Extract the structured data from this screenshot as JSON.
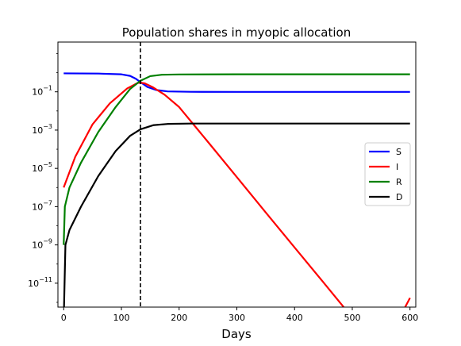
{
  "chart_data": {
    "type": "line",
    "title": "Population shares in myopic allocation",
    "xlabel": "Days",
    "ylabel": "",
    "xlim": [
      -10,
      610
    ],
    "ylim_log10": [
      -12.25,
      1.6
    ],
    "y_scale": "log",
    "x_ticks": [
      0,
      100,
      200,
      300,
      400,
      500,
      600
    ],
    "x_tick_labels": [
      "0",
      "100",
      "200",
      "300",
      "400",
      "500",
      "600"
    ],
    "y_ticks_exp": [
      -1,
      -3,
      -5,
      -7,
      -9,
      -11
    ],
    "y_tick_base": "10",
    "vline": {
      "x": 133,
      "style": "dashed",
      "color": "#000000"
    },
    "legend": {
      "position": "center-right"
    },
    "series": [
      {
        "name": "S",
        "color": "#0000ff",
        "points": [
          [
            0,
            0.92
          ],
          [
            60,
            0.9
          ],
          [
            100,
            0.82
          ],
          [
            115,
            0.68
          ],
          [
            125,
            0.48
          ],
          [
            133,
            0.32
          ],
          [
            145,
            0.18
          ],
          [
            160,
            0.125
          ],
          [
            180,
            0.105
          ],
          [
            220,
            0.1
          ],
          [
            300,
            0.099
          ],
          [
            600,
            0.099
          ]
        ]
      },
      {
        "name": "I",
        "color": "#ff0000",
        "points": [
          [
            0,
            1e-06
          ],
          [
            20,
            4e-05
          ],
          [
            50,
            0.002
          ],
          [
            80,
            0.025
          ],
          [
            110,
            0.15
          ],
          [
            128,
            0.29
          ],
          [
            133,
            0.3
          ],
          [
            140,
            0.28
          ],
          [
            155,
            0.17
          ],
          [
            175,
            0.07
          ],
          [
            200,
            0.016
          ],
          [
            250,
            0.00024
          ],
          [
            300,
            3.5e-06
          ],
          [
            350,
            5e-08
          ],
          [
            400,
            7.4e-10
          ],
          [
            450,
            1.1e-11
          ],
          [
            500,
            1.6e-13
          ],
          [
            550,
            2.4e-15
          ],
          [
            600,
            1.7e-12
          ]
        ]
      },
      {
        "name": "R",
        "color": "#008000",
        "points": [
          [
            0,
            1e-09
          ],
          [
            2,
            1e-07
          ],
          [
            10,
            1e-06
          ],
          [
            30,
            2e-05
          ],
          [
            60,
            0.0008
          ],
          [
            90,
            0.016
          ],
          [
            115,
            0.14
          ],
          [
            133,
            0.38
          ],
          [
            150,
            0.66
          ],
          [
            170,
            0.78
          ],
          [
            200,
            0.81
          ],
          [
            300,
            0.82
          ],
          [
            600,
            0.82
          ]
        ]
      },
      {
        "name": "D",
        "color": "#000000",
        "points": [
          [
            0,
            1e-13
          ],
          [
            3,
            1e-09
          ],
          [
            10,
            6e-09
          ],
          [
            30,
            1e-07
          ],
          [
            60,
            4e-06
          ],
          [
            90,
            8e-05
          ],
          [
            115,
            0.0005
          ],
          [
            133,
            0.0011
          ],
          [
            155,
            0.0018
          ],
          [
            180,
            0.0021
          ],
          [
            220,
            0.0022
          ],
          [
            300,
            0.0022
          ],
          [
            600,
            0.0022
          ]
        ]
      }
    ]
  }
}
